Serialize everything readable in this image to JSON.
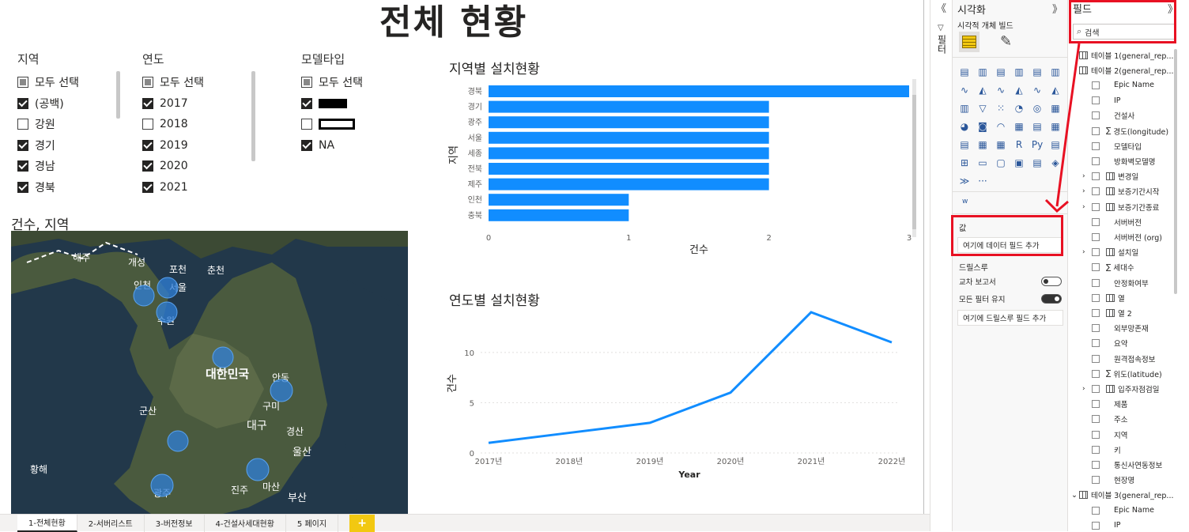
{
  "page": {
    "title": "전체 현황"
  },
  "slicers": [
    {
      "header": "지역",
      "items": [
        {
          "label": "모두 선택",
          "state": "partial"
        },
        {
          "label": "(공백)",
          "state": "checked"
        },
        {
          "label": "강원",
          "state": "unchecked"
        },
        {
          "label": "경기",
          "state": "checked"
        },
        {
          "label": "경남",
          "state": "checked"
        },
        {
          "label": "경북",
          "state": "checked"
        }
      ]
    },
    {
      "header": "연도",
      "items": [
        {
          "label": "모두 선택",
          "state": "partial"
        },
        {
          "label": "2017",
          "state": "checked"
        },
        {
          "label": "2018",
          "state": "unchecked"
        },
        {
          "label": "2019",
          "state": "checked"
        },
        {
          "label": "2020",
          "state": "checked"
        },
        {
          "label": "2021",
          "state": "checked"
        }
      ]
    },
    {
      "header": "모델타입",
      "items": [
        {
          "label": "모두 선택",
          "state": "partial"
        },
        {
          "label": "",
          "state": "checked",
          "redacted": "filled"
        },
        {
          "label": "",
          "state": "unchecked",
          "redacted": "outlined"
        },
        {
          "label": "NA",
          "state": "checked"
        }
      ]
    }
  ],
  "map": {
    "title": "건수, 지역",
    "labels": [
      "해주",
      "개성",
      "포천",
      "춘천",
      "인천",
      "서울",
      "수원",
      "대한민국",
      "안동",
      "군산",
      "구미",
      "대구",
      "경산",
      "울산",
      "황해",
      "광주",
      "진주",
      "마산",
      "부산"
    ]
  },
  "chart_data": [
    {
      "type": "bar",
      "title": "지역별 설치현황",
      "xlabel": "건수",
      "ylabel": "지역",
      "categories": [
        "경북",
        "경기",
        "광주",
        "서울",
        "세종",
        "전북",
        "제주",
        "인천",
        "충북"
      ],
      "values": [
        3,
        2,
        2,
        2,
        2,
        2,
        2,
        1,
        1
      ],
      "xlim": [
        0,
        3
      ],
      "xticks": [
        "0",
        "1",
        "2",
        "3"
      ],
      "color": "#118dff"
    },
    {
      "type": "line",
      "title": "연도별 설치현황",
      "xlabel": "Year",
      "ylabel": "건수",
      "x": [
        "2017년",
        "2018년",
        "2019년",
        "2020년",
        "2021년",
        "2022년"
      ],
      "values": [
        1,
        2,
        3,
        6,
        14,
        11
      ],
      "ylim": [
        0,
        14
      ],
      "yticks": [
        "0",
        "5",
        "10"
      ],
      "color": "#118dff"
    }
  ],
  "tabs": [
    "1-전체현황",
    "2-서버리스트",
    "3-버전정보",
    "4-건설사세대현황",
    "5 페이지"
  ],
  "add_tab": "+",
  "filters_pane": {
    "label": "필터",
    "collapse": "《"
  },
  "viz_pane": {
    "title": "시각화",
    "expand": "》",
    "subtitle": "시각적 개체 빌드",
    "more": "···",
    "w_label": "w",
    "values_label": "값",
    "values_placeholder": "여기에 데이터 필드 추가",
    "drillthrough_label": "드릴스루",
    "cross_report_label": "교차 보고서",
    "cross_report_value": "끄기",
    "keep_filters_label": "모든 필터 유지",
    "keep_filters_value": "켜기",
    "drillthrough_placeholder": "여기에 드릴스루 필드 추가"
  },
  "fields_pane": {
    "title": "필드",
    "expand": "》",
    "search_placeholder": "검색",
    "tables": [
      {
        "name": "테이블 1(general_rep...",
        "fields": []
      },
      {
        "name": "테이블 2(general_rep...",
        "fields": [
          "Epic Name",
          "IP",
          "건설사",
          "경도(longitude)",
          "모델타입",
          "방화벽모델명",
          "변경일",
          "보증기간시작",
          "보증기간종료",
          "서버버전",
          "서버버전 (org)",
          "설치일",
          "세대수",
          "안정화여부",
          "열",
          "열 2",
          "외부망존재",
          "요약",
          "원격접속정보",
          "위도(latitude)",
          "입주자점검일",
          "제품",
          "주소",
          "지역",
          "키",
          "통신사연동정보",
          "현장명"
        ]
      },
      {
        "name": "테이블 3(general_rep...",
        "fields": [
          "Epic Name",
          "IP"
        ]
      }
    ]
  }
}
